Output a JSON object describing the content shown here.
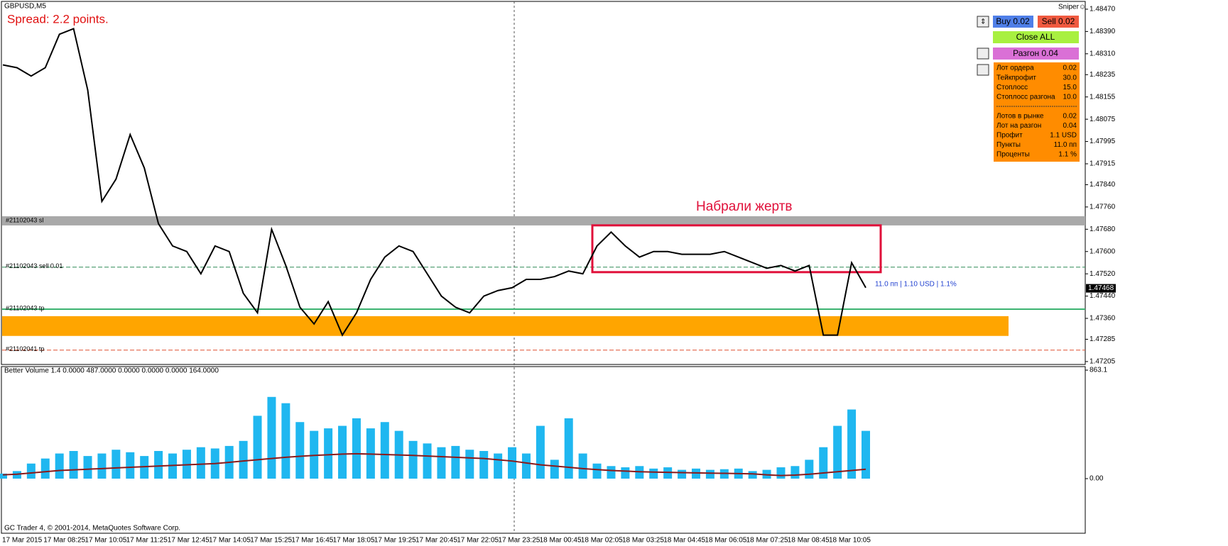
{
  "header": {
    "symbol": "GBPUSD,M5",
    "expert": "Sniper☺",
    "spread": "Spread: 2.2 points."
  },
  "price_chart": {
    "ylim": [
      1.47192,
      1.48503
    ],
    "yticks": [
      {
        "value": 1.4847,
        "label": "1.48470"
      },
      {
        "value": 1.4839,
        "label": "1.48390"
      },
      {
        "value": 1.4831,
        "label": "1.48310"
      },
      {
        "value": 1.48235,
        "label": "1.48235"
      },
      {
        "value": 1.48155,
        "label": "1.48155"
      },
      {
        "value": 1.48075,
        "label": "1.48075"
      },
      {
        "value": 1.47995,
        "label": "1.47995"
      },
      {
        "value": 1.47915,
        "label": "1.47915"
      },
      {
        "value": 1.4784,
        "label": "1.47840"
      },
      {
        "value": 1.4776,
        "label": "1.47760"
      },
      {
        "value": 1.4768,
        "label": "1.47680"
      },
      {
        "value": 1.476,
        "label": "1.47600"
      },
      {
        "value": 1.4752,
        "label": "1.47520"
      },
      {
        "value": 1.4744,
        "label": "1.47440"
      },
      {
        "value": 1.4736,
        "label": "1.47360"
      },
      {
        "value": 1.47285,
        "label": "1.47285"
      },
      {
        "value": 1.47205,
        "label": "1.47205"
      }
    ],
    "time_labels": [
      "17 Mar 2015",
      "17 Mar 08:25",
      "17 Mar 10:05",
      "17 Mar 11:25",
      "17 Mar 12:45",
      "17 Mar 14:05",
      "17 Mar 15:25",
      "17 Mar 16:45",
      "17 Mar 18:05",
      "17 Mar 19:25",
      "17 Mar 20:45",
      "17 Mar 22:05",
      "17 Mar 23:25",
      "18 Mar 00:45",
      "18 Mar 02:05",
      "18 Mar 03:25",
      "18 Mar 04:45",
      "18 Mar 06:05",
      "18 Mar 07:25",
      "18 Mar 08:45",
      "18 Mar 10:05"
    ],
    "closes": [
      1.4827,
      1.4826,
      1.4823,
      1.4826,
      1.4838,
      1.484,
      1.4818,
      1.4778,
      1.4786,
      1.4802,
      1.479,
      1.477,
      1.4762,
      1.476,
      1.4752,
      1.4762,
      1.476,
      1.4745,
      1.4738,
      1.4768,
      1.4755,
      1.474,
      1.4734,
      1.4742,
      1.473,
      1.4738,
      1.475,
      1.4758,
      1.4762,
      1.476,
      1.4752,
      1.4744,
      1.474,
      1.4738,
      1.4744,
      1.4746,
      1.4747,
      1.475,
      1.475,
      1.4751,
      1.4753,
      1.4752,
      1.4762,
      1.4767,
      1.4762,
      1.4758,
      1.476,
      1.476,
      1.4759,
      1.4759,
      1.4759,
      1.476,
      1.4758,
      1.4756,
      1.4754,
      1.4755,
      1.4753,
      1.4755,
      1.473,
      1.473,
      1.4756,
      1.4747
    ],
    "current_price": {
      "value": 1.47468,
      "label": "1.47468"
    },
    "levels": [
      {
        "name": "#21102043 sl",
        "value": 1.47709,
        "color": "#a9a9a9"
      },
      {
        "name": "#21102043 sell 0.01",
        "value": 1.47544,
        "color": "#2e8b57"
      },
      {
        "name": "#21102043 tp",
        "value": 1.47393,
        "color": "#3cb371"
      },
      {
        "name": "#21102041 tp",
        "value": 1.47246,
        "color": "#e05030"
      }
    ],
    "zone": {
      "top": 1.47368,
      "bottom": 1.47297,
      "color": "#ffa500"
    },
    "box": {
      "top": 1.47694,
      "bottom": 1.47526,
      "label": "Набрали жертв"
    },
    "position_text": "11.0 пп | 1.10 USD | 1.1%"
  },
  "volume": {
    "title": "Better Volume 1.4 0.0000 487.0000 0.0000 0.0000 0.0000 164.0000",
    "ylim": [
      0,
      863.1
    ],
    "yticks": [
      {
        "value": 863.1,
        "label": "863.1"
      },
      {
        "value": 0,
        "label": "0.00"
      }
    ],
    "color": "#1fb7f0",
    "ma_color": "#8b1a1a",
    "values": [
      40,
      60,
      120,
      160,
      200,
      220,
      180,
      200,
      230,
      210,
      180,
      220,
      200,
      230,
      250,
      240,
      260,
      300,
      500,
      650,
      600,
      450,
      380,
      400,
      420,
      480,
      400,
      450,
      380,
      300,
      280,
      250,
      260,
      230,
      220,
      200,
      250,
      200,
      420,
      150,
      480,
      200,
      120,
      100,
      90,
      100,
      80,
      90,
      70,
      80,
      70,
      75,
      80,
      60,
      70,
      90,
      100,
      150,
      250,
      420,
      550,
      380
    ],
    "ma": [
      30,
      35,
      45,
      55,
      65,
      70,
      75,
      80,
      85,
      90,
      95,
      100,
      105,
      110,
      115,
      120,
      130,
      140,
      150,
      160,
      170,
      178,
      185,
      190,
      195,
      198,
      195,
      192,
      188,
      185,
      180,
      175,
      170,
      165,
      160,
      150,
      140,
      125,
      110,
      100,
      90,
      80,
      72,
      65,
      60,
      55,
      52,
      50,
      48,
      46,
      44,
      42,
      40,
      38,
      30,
      25,
      28,
      35,
      45,
      55,
      65,
      75
    ]
  },
  "panel": {
    "buy": "Buy 0.02",
    "sell": "Sell 0.02",
    "close_all": "Close ALL",
    "boost": "Разгон 0.04",
    "rows_top": [
      [
        "Лот ордера",
        "0.02"
      ],
      [
        "Тейкпрофит",
        "30.0"
      ],
      [
        "Стоплосс",
        "15.0"
      ],
      [
        "Стоплосс разгона",
        "10.0"
      ]
    ],
    "rows_bottom": [
      [
        "Лотов в рынке",
        "0.02"
      ],
      [
        "Лот на разгон",
        "0.04"
      ],
      [
        "Профит",
        "1.1 USD"
      ],
      [
        "Пункты",
        "11.0 пп"
      ],
      [
        "Проценты",
        "1.1 %"
      ]
    ]
  },
  "footer": "GC Trader 4, © 2001-2014, MetaQuotes Software Corp."
}
